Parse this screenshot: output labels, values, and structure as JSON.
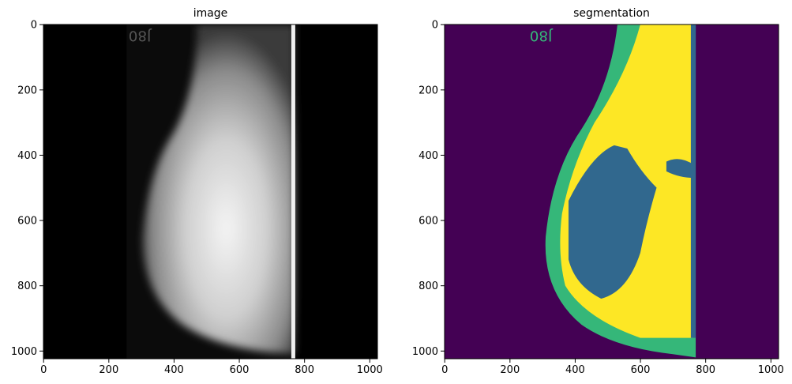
{
  "chart_data": [
    {
      "type": "image",
      "title": "image",
      "xlim": [
        -0.5,
        1023.5
      ],
      "ylim": [
        1023.5,
        -0.5
      ],
      "xticks": [
        0,
        200,
        400,
        600,
        800,
        1000
      ],
      "yticks": [
        0,
        200,
        400,
        600,
        800,
        1000
      ]
    },
    {
      "type": "image",
      "title": "segmentation",
      "xlim": [
        -0.5,
        1023.5
      ],
      "ylim": [
        1023.5,
        -0.5
      ],
      "xticks": [
        0,
        200,
        400,
        600,
        800,
        1000
      ],
      "yticks": [
        0,
        200,
        400,
        600,
        800,
        1000
      ]
    }
  ]
}
